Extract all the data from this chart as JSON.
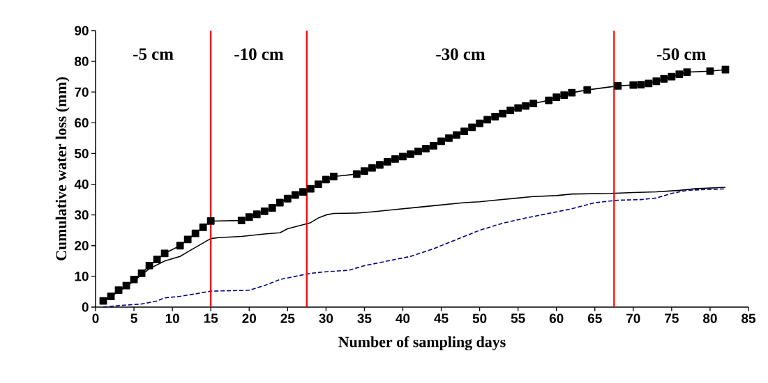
{
  "chart_data": {
    "type": "line",
    "xlabel": "Number of sampling days",
    "ylabel": "Cumulative water loss (mm)",
    "xlim": [
      0,
      85
    ],
    "ylim": [
      0,
      90
    ],
    "xticks": [
      0,
      5,
      10,
      15,
      20,
      25,
      30,
      35,
      40,
      45,
      50,
      55,
      60,
      65,
      70,
      75,
      80,
      85
    ],
    "yticks": [
      0,
      10,
      20,
      30,
      40,
      50,
      60,
      70,
      80,
      90
    ],
    "annotations": [
      "-5 cm",
      "-10 cm",
      "-30 cm",
      "-50 cm"
    ],
    "ref_lines": [
      {
        "axis": "x",
        "value": 15,
        "color": "#ff0000"
      },
      {
        "axis": "x",
        "value": 27.5,
        "color": "#ff0000"
      },
      {
        "axis": "x",
        "value": 67.5,
        "color": "#ff0000"
      }
    ],
    "series": [
      {
        "color": "#000000",
        "marker": "square",
        "line_style": "solid",
        "x": [
          1,
          2,
          3,
          4,
          5,
          6,
          7,
          8,
          9,
          11,
          12,
          13,
          14,
          15,
          19,
          20,
          21,
          22,
          23,
          24,
          25,
          26,
          27,
          28,
          29,
          30,
          31,
          34,
          35,
          36,
          37,
          38,
          39,
          40,
          41,
          42,
          43,
          44,
          45,
          46,
          47,
          48,
          49,
          50,
          51,
          52,
          53,
          54,
          55,
          56,
          57,
          59,
          60,
          61,
          62,
          64,
          68,
          70,
          71,
          72,
          73,
          74,
          75,
          76,
          77,
          80,
          82
        ],
        "values": [
          2,
          3.5,
          5.5,
          7,
          9,
          11,
          13.5,
          15.5,
          17.5,
          20,
          22,
          24,
          26,
          28,
          28.2,
          29.3,
          30.2,
          31.2,
          32.3,
          34,
          35.3,
          36.5,
          37.5,
          38.5,
          40,
          41.5,
          42.5,
          43.3,
          44.3,
          45.3,
          46.3,
          47.3,
          48.2,
          49,
          49.8,
          50.7,
          51.6,
          52.5,
          54,
          55,
          56,
          57.2,
          58.5,
          59.8,
          61,
          62,
          63,
          64,
          64.8,
          65.5,
          66.3,
          67.3,
          68.3,
          69,
          69.8,
          70.7,
          72,
          72.3,
          72.4,
          72.8,
          73.5,
          74.3,
          75,
          75.8,
          76.5,
          76.8,
          77.3
        ]
      },
      {
        "color": "#000000",
        "marker": "none",
        "line_style": "solid",
        "x": [
          1,
          3,
          5,
          7,
          9,
          11,
          12,
          15,
          16,
          19,
          22,
          24,
          25,
          27,
          28,
          29,
          30,
          31,
          34,
          36,
          38,
          40,
          42,
          44,
          46,
          48,
          50,
          52,
          55,
          57,
          60,
          62,
          67,
          70,
          73,
          76,
          78,
          82
        ],
        "values": [
          2,
          5,
          8.5,
          12.5,
          15,
          16.5,
          18,
          22.3,
          22.6,
          23,
          23.8,
          24.2,
          25.5,
          26.8,
          27.5,
          29,
          30,
          30.5,
          30.6,
          31,
          31.5,
          32,
          32.5,
          33,
          33.5,
          34,
          34.3,
          34.8,
          35.5,
          36,
          36.3,
          36.8,
          37,
          37.3,
          37.5,
          38,
          38.5,
          39
        ]
      },
      {
        "color": "#000080",
        "marker": "none",
        "line_style": "dashed",
        "x": [
          1,
          3,
          6,
          8,
          9,
          11,
          13,
          15,
          17,
          20,
          22,
          24,
          26,
          28,
          30,
          33,
          35,
          38,
          41,
          44,
          47,
          50,
          53,
          56,
          59,
          62,
          65,
          68,
          71,
          73,
          75,
          77,
          82
        ],
        "values": [
          0,
          0.5,
          1,
          2,
          3,
          3.5,
          4.3,
          5.2,
          5.3,
          5.5,
          7,
          9,
          10,
          11,
          11.5,
          12,
          13.5,
          15,
          16.5,
          19,
          22,
          25,
          27.3,
          29,
          30.5,
          32,
          34,
          34.8,
          35,
          35.5,
          37,
          38,
          38.5
        ]
      }
    ]
  }
}
